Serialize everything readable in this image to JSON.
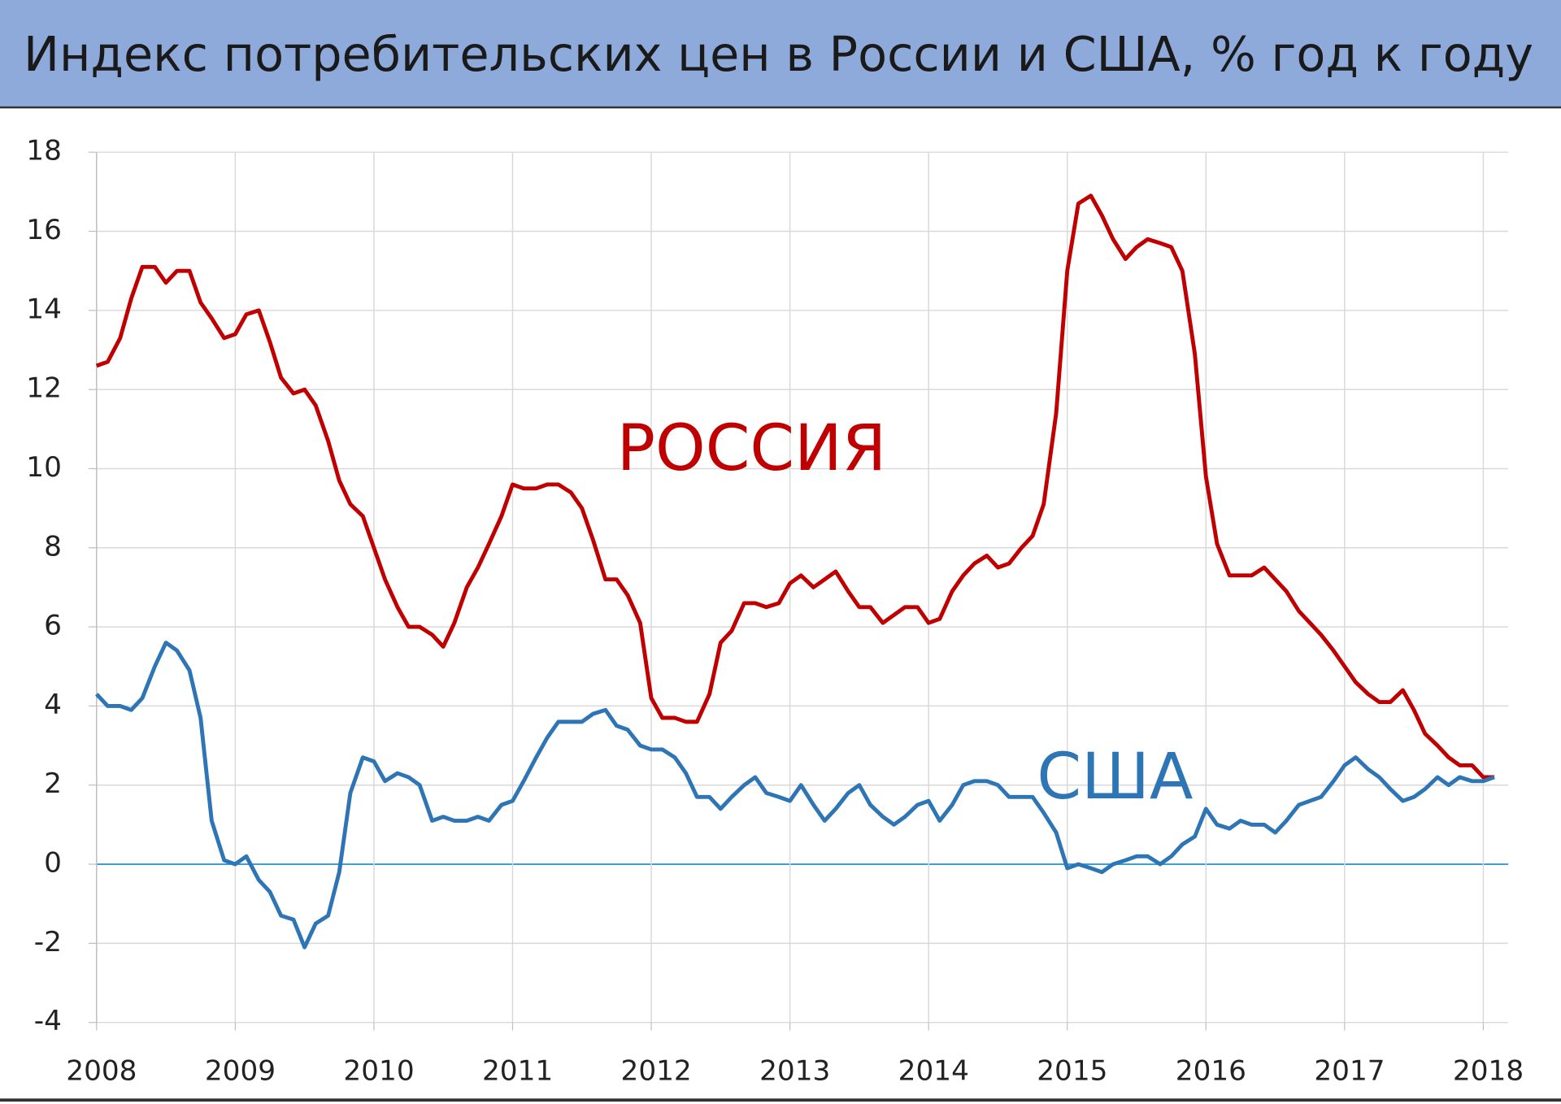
{
  "chart_data": {
    "type": "line",
    "title": "Индекс потребительских цен в России и США, % год к году",
    "x": [
      2008,
      2008.08,
      2008.17,
      2008.25,
      2008.33,
      2008.42,
      2008.5,
      2008.58,
      2008.67,
      2008.75,
      2008.83,
      2008.92,
      2009,
      2009.08,
      2009.17,
      2009.25,
      2009.33,
      2009.42,
      2009.5,
      2009.58,
      2009.67,
      2009.75,
      2009.83,
      2009.92,
      2010,
      2010.08,
      2010.17,
      2010.25,
      2010.33,
      2010.42,
      2010.5,
      2010.58,
      2010.67,
      2010.75,
      2010.83,
      2010.92,
      2011,
      2011.08,
      2011.17,
      2011.25,
      2011.33,
      2011.42,
      2011.5,
      2011.58,
      2011.67,
      2011.75,
      2011.83,
      2011.92,
      2012,
      2012.08,
      2012.17,
      2012.25,
      2012.33,
      2012.42,
      2012.5,
      2012.58,
      2012.67,
      2012.75,
      2012.83,
      2012.92,
      2013,
      2013.08,
      2013.17,
      2013.25,
      2013.33,
      2013.42,
      2013.5,
      2013.58,
      2013.67,
      2013.75,
      2013.83,
      2013.92,
      2014,
      2014.08,
      2014.17,
      2014.25,
      2014.33,
      2014.42,
      2014.5,
      2014.58,
      2014.67,
      2014.75,
      2014.83,
      2014.92,
      2015,
      2015.08,
      2015.17,
      2015.25,
      2015.33,
      2015.42,
      2015.5,
      2015.58,
      2015.67,
      2015.75,
      2015.83,
      2015.92,
      2016,
      2016.08,
      2016.17,
      2016.25,
      2016.33,
      2016.42,
      2016.5,
      2016.58,
      2016.67,
      2016.75,
      2016.83,
      2016.92,
      2017,
      2017.08,
      2017.17,
      2017.25,
      2017.33,
      2017.42,
      2017.5,
      2017.58,
      2017.67,
      2017.75,
      2017.83,
      2017.92,
      2018,
      2018.08
    ],
    "series": [
      {
        "name": "РОССИЯ",
        "color": "#c00000",
        "values": [
          12.6,
          12.7,
          13.3,
          14.3,
          15.1,
          15.1,
          14.7,
          15.0,
          15.0,
          14.2,
          13.8,
          13.3,
          13.4,
          13.9,
          14.0,
          13.2,
          12.3,
          11.9,
          12.0,
          11.6,
          10.7,
          9.7,
          9.1,
          8.8,
          8.0,
          7.2,
          6.5,
          6.0,
          6.0,
          5.8,
          5.5,
          6.1,
          7.0,
          7.5,
          8.1,
          8.8,
          9.6,
          9.5,
          9.5,
          9.6,
          9.6,
          9.4,
          9.0,
          8.2,
          7.2,
          7.2,
          6.8,
          6.1,
          4.2,
          3.7,
          3.7,
          3.6,
          3.6,
          4.3,
          5.6,
          5.9,
          6.6,
          6.6,
          6.5,
          6.6,
          7.1,
          7.3,
          7.0,
          7.2,
          7.4,
          6.9,
          6.5,
          6.5,
          6.1,
          6.3,
          6.5,
          6.5,
          6.1,
          6.2,
          6.9,
          7.3,
          7.6,
          7.8,
          7.5,
          7.6,
          8.0,
          8.3,
          9.1,
          11.4,
          15.0,
          16.7,
          16.9,
          16.4,
          15.8,
          15.3,
          15.6,
          15.8,
          15.7,
          15.6,
          15.0,
          12.9,
          9.8,
          8.1,
          7.3,
          7.3,
          7.3,
          7.5,
          7.2,
          6.9,
          6.4,
          6.1,
          5.8,
          5.4,
          5.0,
          4.6,
          4.3,
          4.1,
          4.1,
          4.4,
          3.9,
          3.3,
          3.0,
          2.7,
          2.5,
          2.5,
          2.2,
          2.2
        ]
      },
      {
        "name": "США",
        "color": "#2e75b6",
        "values": [
          4.3,
          4.0,
          4.0,
          3.9,
          4.2,
          5.0,
          5.6,
          5.4,
          4.9,
          3.7,
          1.1,
          0.1,
          0.0,
          0.2,
          -0.4,
          -0.7,
          -1.3,
          -1.4,
          -2.1,
          -1.5,
          -1.3,
          -0.2,
          1.8,
          2.7,
          2.6,
          2.1,
          2.3,
          2.2,
          2.0,
          1.1,
          1.2,
          1.1,
          1.1,
          1.2,
          1.1,
          1.5,
          1.6,
          2.1,
          2.7,
          3.2,
          3.6,
          3.6,
          3.6,
          3.8,
          3.9,
          3.5,
          3.4,
          3.0,
          2.9,
          2.9,
          2.7,
          2.3,
          1.7,
          1.7,
          1.4,
          1.7,
          2.0,
          2.2,
          1.8,
          1.7,
          1.6,
          2.0,
          1.5,
          1.1,
          1.4,
          1.8,
          2.0,
          1.5,
          1.2,
          1.0,
          1.2,
          1.5,
          1.6,
          1.1,
          1.5,
          2.0,
          2.1,
          2.1,
          2.0,
          1.7,
          1.7,
          1.7,
          1.3,
          0.8,
          -0.1,
          0.0,
          -0.1,
          -0.2,
          0.0,
          0.1,
          0.2,
          0.2,
          0.0,
          0.2,
          0.5,
          0.7,
          1.4,
          1.0,
          0.9,
          1.1,
          1.0,
          1.0,
          0.8,
          1.1,
          1.5,
          1.6,
          1.7,
          2.1,
          2.5,
          2.7,
          2.4,
          2.2,
          1.9,
          1.6,
          1.7,
          1.9,
          2.2,
          2.0,
          2.2,
          2.1,
          2.1,
          2.2
        ]
      }
    ],
    "xlim": [
      2008,
      2018.18
    ],
    "xticks": [
      2008,
      2009,
      2010,
      2011,
      2012,
      2013,
      2014,
      2015,
      2016,
      2017,
      2018
    ],
    "ylim": [
      -4,
      18
    ],
    "yticks": [
      -4,
      -2,
      0,
      2,
      4,
      6,
      8,
      10,
      12,
      14,
      16,
      18
    ],
    "grid": true,
    "zero_line_color": "#2e9bd6"
  }
}
